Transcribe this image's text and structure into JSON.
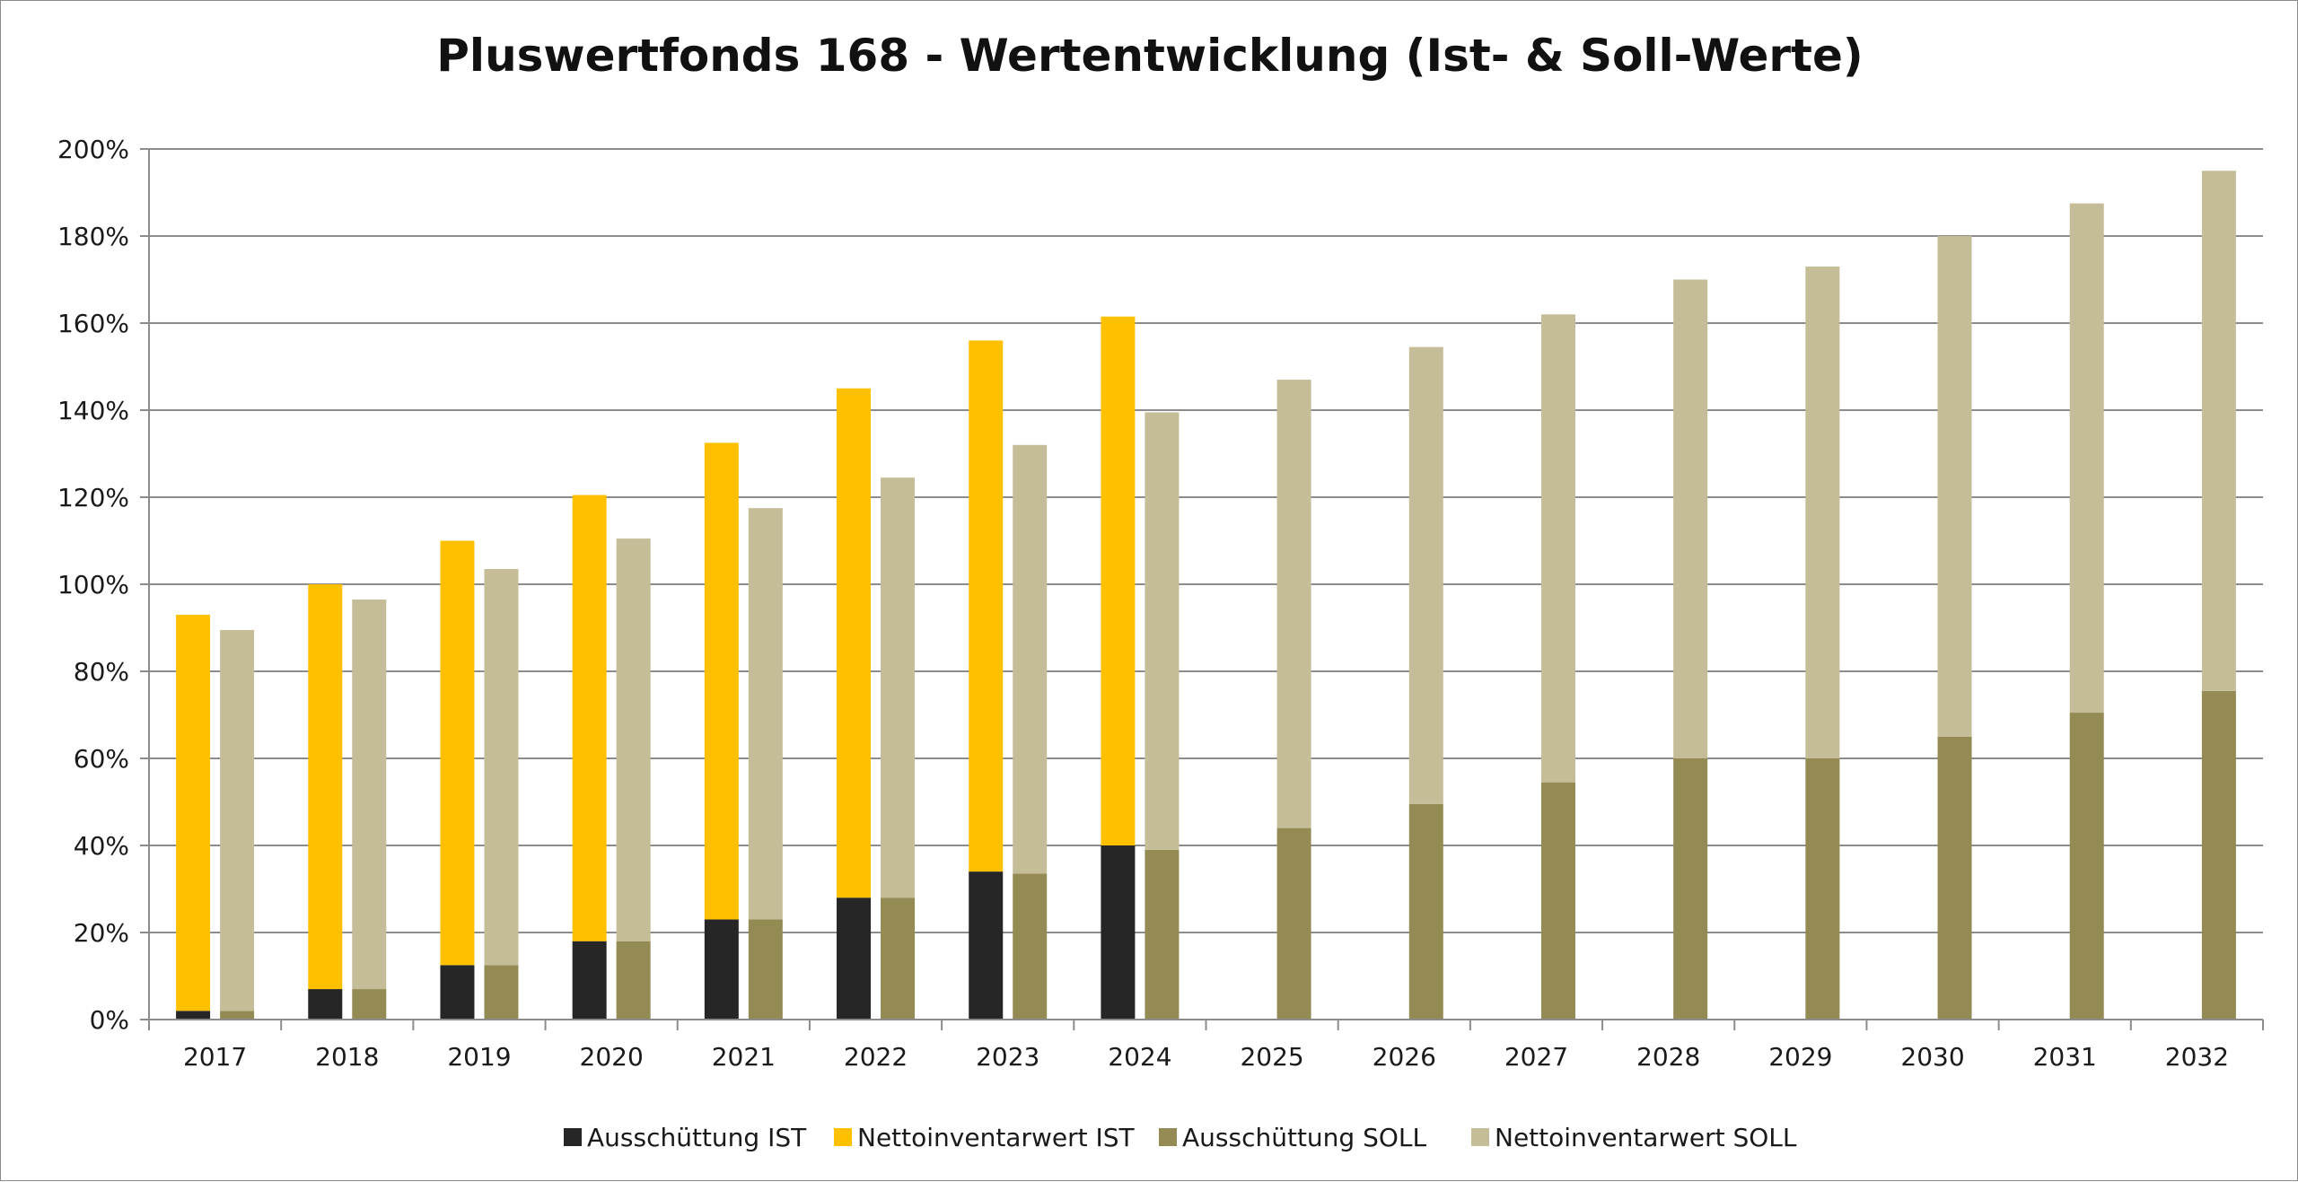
{
  "chart_data": {
    "type": "bar",
    "title": "Pluswertfonds 168 - Wertentwicklung (Ist- & Soll-Werte)",
    "xlabel": "",
    "ylabel": "",
    "ylim": [
      0,
      200
    ],
    "yticks": [
      "0%",
      "20%",
      "40%",
      "60%",
      "80%",
      "100%",
      "120%",
      "140%",
      "160%",
      "180%",
      "200%"
    ],
    "grid": true,
    "legend_position": "bottom",
    "categories": [
      "2017",
      "2018",
      "2019",
      "2020",
      "2021",
      "2022",
      "2023",
      "2024",
      "2025",
      "2026",
      "2027",
      "2028",
      "2029",
      "2030",
      "2031",
      "2032"
    ],
    "stacks": [
      {
        "stack": "IST",
        "series": [
          {
            "name": "Ausschüttung IST",
            "color": "#262626",
            "values": [
              2,
              7,
              12.5,
              18,
              23,
              28,
              34,
              40,
              null,
              null,
              null,
              null,
              null,
              null,
              null,
              null
            ]
          },
          {
            "name": "Nettoinventarwert IST",
            "color": "#FFC000",
            "values": [
              91,
              93,
              97.5,
              102.5,
              109.5,
              117,
              122,
              121.5,
              null,
              null,
              null,
              null,
              null,
              null,
              null,
              null
            ]
          }
        ]
      },
      {
        "stack": "SOLL",
        "series": [
          {
            "name": "Ausschüttung SOLL",
            "color": "#948A54",
            "values": [
              2,
              7,
              12.5,
              18,
              23,
              28,
              33.5,
              39,
              44,
              49.5,
              54.5,
              60,
              60,
              65,
              70.5,
              75.5
            ]
          },
          {
            "name": "Nettoinventarwert SOLL",
            "color": "#C4BD97",
            "values": [
              87.5,
              89.5,
              91,
              92.5,
              94.5,
              96.5,
              98.5,
              100.5,
              103,
              105,
              107.5,
              110,
              113,
              115,
              117,
              119.5
            ]
          }
        ]
      }
    ],
    "legend": [
      {
        "name": "Ausschüttung IST",
        "color": "#262626"
      },
      {
        "name": "Nettoinventarwert IST",
        "color": "#FFC000"
      },
      {
        "name": "Ausschüttung SOLL",
        "color": "#948A54"
      },
      {
        "name": "Nettoinventarwert SOLL",
        "color": "#C4BD97"
      }
    ],
    "colors": {
      "grid": "#8c8c8c",
      "axis": "#8c8c8c",
      "background": "#ffffff"
    }
  }
}
